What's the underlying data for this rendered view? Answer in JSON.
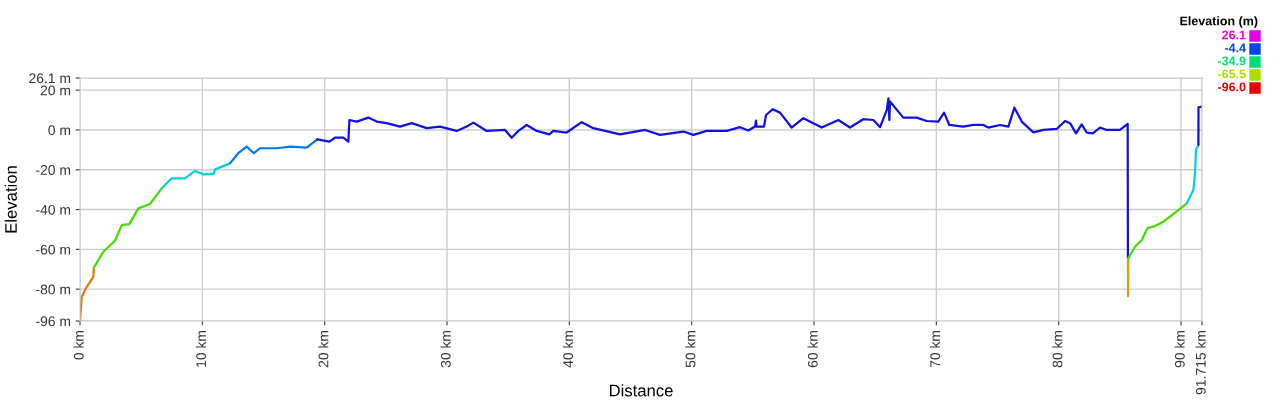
{
  "chart_data": {
    "type": "line",
    "xlabel": "Distance",
    "ylabel": "Elevation",
    "clabel": "Elevation (m)",
    "cticks": [
      {
        "value": 26.1,
        "label": "26.1"
      },
      {
        "value": -4.4,
        "label": "-4.4"
      },
      {
        "value": -34.9,
        "label": "-34.9"
      },
      {
        "value": -65.5,
        "label": "-65.5"
      },
      {
        "value": -96.0,
        "label": "-96.0"
      }
    ],
    "colors": [
      "#e600e6",
      "#0044ee",
      "#00e070",
      "#aadd00",
      "#ee0000"
    ],
    "xlim": [
      0,
      91.715
    ],
    "xticks": [
      {
        "value": 0,
        "label": "0 km"
      },
      {
        "value": 10,
        "label": "10 km"
      },
      {
        "value": 20,
        "label": "20 km"
      },
      {
        "value": 30,
        "label": "30 km"
      },
      {
        "value": 40,
        "label": "40 km"
      },
      {
        "value": 50,
        "label": "50 km"
      },
      {
        "value": 60,
        "label": "60 km"
      },
      {
        "value": 70,
        "label": "70 km"
      },
      {
        "value": 80,
        "label": "80 km"
      },
      {
        "value": 90,
        "label": "90 km"
      },
      {
        "value": 91.715,
        "label": "91.715 km"
      }
    ],
    "ylim": [
      -96.0,
      26.1
    ],
    "yticks": [
      {
        "value": -96,
        "label": "-96 m"
      },
      {
        "value": -80,
        "label": "-80 m"
      },
      {
        "value": -60,
        "label": "-60 m"
      },
      {
        "value": -40,
        "label": "-40 m"
      },
      {
        "value": -20,
        "label": "-20 m"
      },
      {
        "value": 0,
        "label": "0 m"
      },
      {
        "value": 20,
        "label": "20 m"
      },
      {
        "value": 26.1,
        "label": "26.1 m"
      }
    ],
    "grid": true,
    "series": [
      {
        "color": "#e67a00",
        "x": [
          0,
          0.14,
          0.55,
          1.09,
          1.14
        ],
        "values": [
          -96,
          -83.9,
          -78.8,
          -73.8,
          -69.1
        ]
      },
      {
        "color": "#44dd00",
        "x": [
          1.14,
          1.91,
          2.86,
          3.41,
          4.03,
          4.77,
          5.72,
          6.68
        ],
        "values": [
          -69.1,
          -61.2,
          -55.7,
          -47.8,
          -47.3,
          -39.4,
          -37.2,
          -29.4
        ]
      },
      {
        "color": "#00d0e0",
        "x": [
          6.68,
          7.49,
          8.58,
          9.4,
          10.08,
          10.9,
          11.04,
          12.26
        ],
        "values": [
          -29.4,
          -24.3,
          -24.3,
          -20.6,
          -22.3,
          -22.1,
          -19.8,
          -16.8
        ]
      },
      {
        "color": "#0077ee",
        "x": [
          12.26,
          12.94,
          13.62,
          14.22,
          14.71,
          16.08,
          17.17,
          18.53,
          19.4
        ],
        "values": [
          -16.8,
          -11.7,
          -8.4,
          -11.7,
          -9.2,
          -9.2,
          -8.4,
          -8.9,
          -4.7
        ]
      },
      {
        "color": "#1010e0",
        "x": [
          19.4,
          20.38,
          20.85,
          21.53,
          21.93,
          22.02,
          22.62,
          23.57,
          24.25,
          25.07,
          26.16,
          27.11,
          28.34,
          29.43,
          30.79,
          31.61,
          32.15,
          33.25,
          34.74,
          35.29,
          35.83,
          36.52,
          37.33,
          38.37,
          38.69,
          39.78,
          41.01,
          41.96,
          44.14,
          46.19,
          47.41,
          49.32,
          50.14,
          51.23,
          52.87,
          53.95,
          54.63,
          55.18,
          55.26,
          55.3,
          55.91,
          56.08,
          56.62,
          57.22,
          58.17,
          59.13,
          60.63,
          61.99,
          62.94,
          64.03,
          64.85,
          65.4,
          65.95,
          66.08,
          66.16,
          66.21,
          67.3,
          68.39,
          69.21,
          70.16,
          70.63,
          71.06,
          72.2,
          73.03,
          73.84,
          74.25,
          75.21,
          75.89,
          76.38,
          76.98,
          77.93,
          78.75,
          79.84,
          80.52,
          80.93,
          81.42,
          81.88,
          82.29,
          82.78,
          83.38,
          83.93,
          85.01,
          85.64,
          85.66
        ],
        "values": [
          -4.7,
          -5.9,
          -3.9,
          -3.9,
          -5.9,
          5.0,
          4.2,
          6.2,
          4.2,
          3.4,
          1.7,
          3.4,
          0.9,
          1.7,
          -0.5,
          1.7,
          3.7,
          -0.5,
          0,
          -3.9,
          -0.5,
          2.5,
          -0.5,
          -2.2,
          -0.5,
          -1.3,
          3.9,
          0.9,
          -2.2,
          0,
          -2.5,
          -0.8,
          -2.5,
          -0.5,
          -0.5,
          1.4,
          -0.3,
          1.7,
          4.7,
          1.7,
          1.7,
          7.5,
          10.4,
          8.7,
          1.2,
          5.9,
          1.2,
          5.0,
          1.2,
          5.4,
          5.0,
          1.4,
          10.1,
          15.9,
          5.0,
          14.3,
          6.2,
          6.2,
          4.5,
          4.2,
          8.7,
          2.5,
          1.7,
          2.5,
          2.5,
          1.2,
          2.5,
          1.7,
          11.2,
          4.2,
          -1.2,
          0,
          0.5,
          4.5,
          3.4,
          -1.7,
          2.8,
          -1.3,
          -1.7,
          1.2,
          0,
          0,
          3.0,
          -64.6
        ]
      },
      {
        "color": "#e0a000",
        "x": [
          85.66,
          85.67,
          85.68
        ],
        "values": [
          -64.6,
          -83.5,
          -64.6
        ]
      },
      {
        "color": "#44dd00",
        "x": [
          85.68,
          86.24,
          86.79,
          87.28,
          87.74,
          88.56,
          89.79,
          90.47
        ],
        "values": [
          -64.6,
          -58.7,
          -55.3,
          -49.2,
          -48.6,
          -46.1,
          -40.3,
          -36.9
        ]
      },
      {
        "color": "#00d0e0",
        "x": [
          90.47,
          91.01,
          91.15,
          91.23,
          91.42
        ],
        "values": [
          -36.9,
          -30.2,
          -21,
          -10.1,
          -7.5
        ]
      },
      {
        "color": "#1010e0",
        "x": [
          91.42,
          91.43,
          91.7
        ],
        "values": [
          -7.5,
          11.4,
          11.7
        ]
      }
    ]
  }
}
